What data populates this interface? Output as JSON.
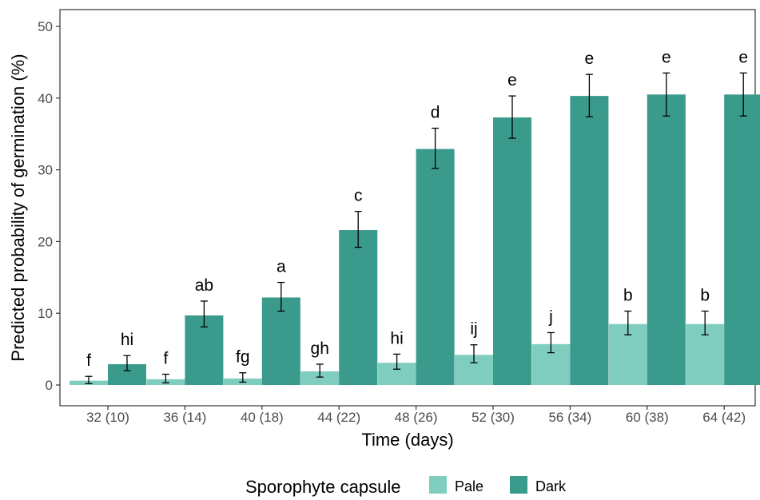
{
  "chart_data": {
    "type": "bar",
    "xlabel": "Time (days)",
    "ylabel": "Predicted probability of germination (%)",
    "ylim": [
      0,
      50
    ],
    "yticks": [
      "0",
      "10",
      "20",
      "30",
      "40",
      "50"
    ],
    "grid": false,
    "categories": [
      "32 (10)",
      "36 (14)",
      "40 (18)",
      "44 (22)",
      "48 (26)",
      "52 (30)",
      "56 (34)",
      "60 (38)",
      "64 (42)"
    ],
    "legend": {
      "title": "Sporophyte capsule",
      "position": "bottom"
    },
    "series": [
      {
        "name": "Pale",
        "color": "#7fcdbf",
        "values": [
          0.6,
          0.8,
          0.9,
          1.9,
          3.1,
          4.2,
          5.7,
          8.5,
          8.5
        ],
        "err_low": [
          0.2,
          0.3,
          0.4,
          1.1,
          2.2,
          3.1,
          4.5,
          7.0,
          7.0
        ],
        "err_high": [
          1.2,
          1.5,
          1.7,
          2.9,
          4.3,
          5.6,
          7.3,
          10.3,
          10.3
        ],
        "labels": [
          "f",
          "f",
          "fg",
          "gh",
          "hi",
          "ij",
          "j",
          "b",
          "b"
        ]
      },
      {
        "name": "Dark",
        "color": "#3a9a8c",
        "values": [
          2.9,
          9.7,
          12.2,
          21.6,
          32.9,
          37.3,
          40.3,
          40.5,
          40.5
        ],
        "err_low": [
          2.0,
          8.1,
          10.3,
          19.2,
          30.2,
          34.4,
          37.4,
          37.5,
          37.5
        ],
        "err_high": [
          4.1,
          11.7,
          14.3,
          24.2,
          35.8,
          40.3,
          43.3,
          43.5,
          43.5
        ],
        "labels": [
          "hi",
          "ab",
          "a",
          "c",
          "d",
          "e",
          "e",
          "e",
          "e"
        ]
      }
    ]
  }
}
